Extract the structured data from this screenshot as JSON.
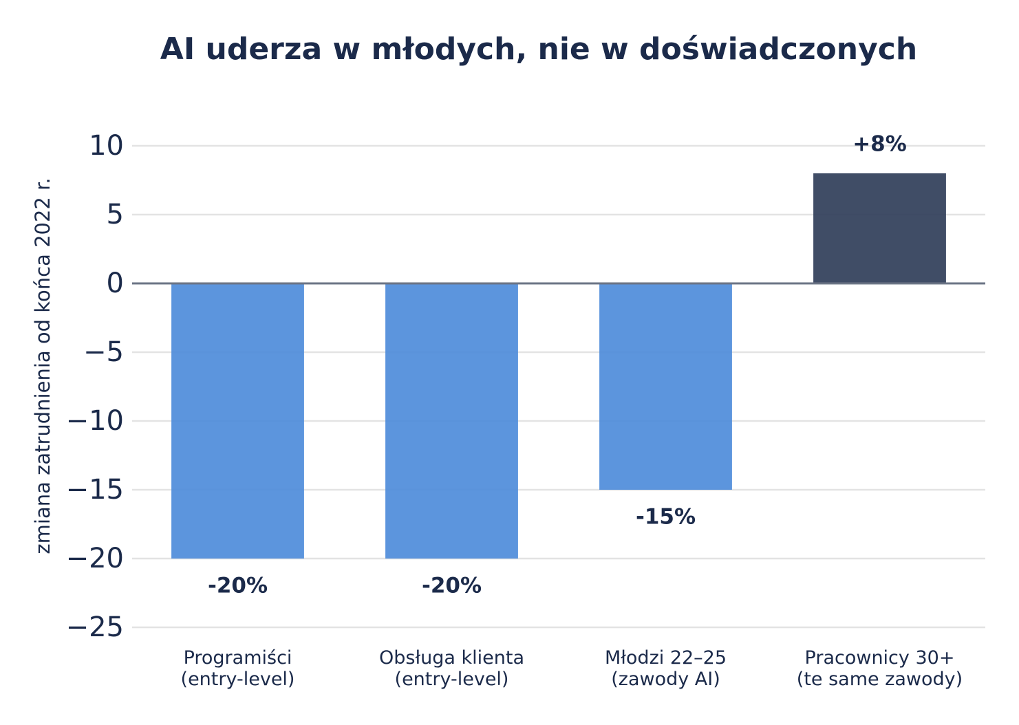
{
  "chart_data": {
    "type": "bar",
    "title": "AI uderza w młodych, nie w doświadczonych",
    "y_label": "zmiana zatrudnienia od końca 2022 r.",
    "categories": [
      "Programiści\n(entry-level)",
      "Obsługa klienta\n(entry-level)",
      "Młodzi 22–25\n(zawody AI)",
      "Pracownicy 30+\n(te same zawody)"
    ],
    "values": [
      -20,
      -20,
      -15,
      8
    ],
    "value_labels": [
      "-20%",
      "-20%",
      "-15%",
      "+8%"
    ],
    "colors": [
      "#4a8ad9",
      "#4a8ad9",
      "#4a8ad9",
      "#2b3a55"
    ],
    "ylim": [
      -25,
      10
    ],
    "yticks": [
      {
        "value": -25,
        "label": "−25"
      },
      {
        "value": -20,
        "label": "−20"
      },
      {
        "value": -15,
        "label": "−15"
      },
      {
        "value": -10,
        "label": "−10"
      },
      {
        "value": -5,
        "label": "−5"
      },
      0,
      5,
      10
    ],
    "grid": true
  }
}
